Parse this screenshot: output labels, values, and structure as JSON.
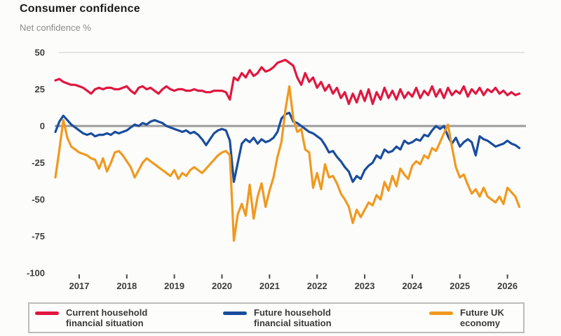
{
  "header": {
    "title": "Consumer confidence",
    "subtitle": "Net confidence %"
  },
  "chart_data": {
    "type": "line",
    "title": "Consumer confidence",
    "ylabel": "Net confidence %",
    "xlim": [
      2016.485,
      2026.33
    ],
    "ylim": [
      -100,
      50
    ],
    "y_ticks": [
      50,
      25,
      0,
      -25,
      -50,
      -75,
      -100
    ],
    "x_ticks": [
      2017,
      2018,
      2019,
      2020,
      2021,
      2022,
      2023,
      2024,
      2025,
      2026
    ],
    "x_start": 2016.5,
    "x_step": 0.083333,
    "grid": "light line at +50, heavy grey zero line, no other gridlines",
    "legend_position": "bottom",
    "zero_line_color": "#9b9b9b",
    "top_grid_color": "#e4e4e1",
    "tick_color": "#4a4a4a",
    "series": [
      {
        "id": "current-household",
        "name": "Current household financial situation",
        "color": "#e0173f",
        "values": [
          31,
          32,
          30,
          29,
          28,
          28,
          27,
          26,
          24,
          22,
          25,
          26,
          25,
          26,
          26,
          25,
          25,
          26,
          27,
          24,
          22,
          26,
          27,
          25,
          26,
          24,
          22,
          25,
          27,
          25,
          24,
          25,
          25,
          24,
          24,
          25,
          24,
          24,
          23,
          23,
          24,
          24,
          24,
          23,
          18,
          33,
          31,
          36,
          33,
          38,
          34,
          36,
          40,
          37,
          38,
          40,
          43,
          44,
          45,
          43,
          41,
          33,
          28,
          36,
          30,
          33,
          26,
          30,
          24,
          28,
          22,
          26,
          19,
          23,
          15,
          22,
          16,
          24,
          17,
          25,
          15,
          23,
          18,
          26,
          19,
          24,
          18,
          25,
          19,
          23,
          20,
          26,
          19,
          24,
          21,
          27,
          20,
          25,
          19,
          26,
          21,
          24,
          22,
          27,
          20,
          25,
          22,
          26,
          21,
          25,
          23,
          26,
          22,
          24,
          21,
          23,
          21,
          22
        ]
      },
      {
        "id": "future-household",
        "name": "Future household financial situation",
        "color": "#1a4d9d",
        "values": [
          -4,
          3,
          7,
          4,
          1,
          -1,
          -3,
          -5,
          -6,
          -5,
          -7,
          -6,
          -6,
          -5,
          -6,
          -4,
          -5,
          -4,
          -3,
          -1,
          1,
          0,
          2,
          1,
          3,
          4,
          3,
          2,
          0,
          -1,
          -2,
          -3,
          -4,
          -3,
          -5,
          -4,
          -6,
          -9,
          -13,
          -9,
          -5,
          -3,
          -2,
          -3,
          -10,
          -38,
          -25,
          -12,
          -9,
          -11,
          -8,
          -12,
          -9,
          -11,
          -10,
          -8,
          -4,
          5,
          8,
          9,
          3,
          2,
          0,
          -2,
          -4,
          -5,
          -7,
          -9,
          -13,
          -18,
          -17,
          -21,
          -24,
          -28,
          -31,
          -38,
          -34,
          -36,
          -30,
          -27,
          -25,
          -20,
          -22,
          -16,
          -18,
          -17,
          -14,
          -16,
          -10,
          -12,
          -11,
          -9,
          -10,
          -6,
          -7,
          -3,
          0,
          -2,
          0,
          -7,
          -12,
          -8,
          -14,
          -11,
          -9,
          -11,
          -20,
          -7,
          -9,
          -10,
          -12,
          -14,
          -13,
          -12,
          -10,
          -12,
          -13,
          -15
        ]
      },
      {
        "id": "future-uk-economy",
        "name": "Future UK economy",
        "color": "#f0991f",
        "values": [
          -35,
          -16,
          4,
          -8,
          -14,
          -16,
          -18,
          -19,
          -20,
          -22,
          -23,
          -29,
          -22,
          -31,
          -25,
          -18,
          -17,
          -20,
          -24,
          -28,
          -35,
          -30,
          -25,
          -22,
          -24,
          -26,
          -28,
          -30,
          -32,
          -34,
          -30,
          -36,
          -32,
          -34,
          -30,
          -28,
          -30,
          -32,
          -29,
          -26,
          -23,
          -20,
          -18,
          -17,
          -20,
          -78,
          -60,
          -53,
          -61,
          -40,
          -63,
          -48,
          -39,
          -55,
          -44,
          -35,
          -21,
          -11,
          11,
          27,
          5,
          -4,
          -2,
          -16,
          -18,
          -42,
          -32,
          -43,
          -26,
          -35,
          -34,
          -39,
          -46,
          -50,
          -55,
          -66,
          -57,
          -62,
          -57,
          -52,
          -54,
          -47,
          -50,
          -38,
          -44,
          -34,
          -41,
          -29,
          -33,
          -36,
          -27,
          -24,
          -26,
          -20,
          -22,
          -15,
          -17,
          -11,
          -5,
          1,
          -14,
          -28,
          -35,
          -33,
          -40,
          -46,
          -43,
          -48,
          -42,
          -48,
          -50,
          -52,
          -48,
          -53,
          -42,
          -45,
          -48,
          -55
        ]
      }
    ]
  },
  "legend": {
    "items": [
      {
        "line1": "Current household",
        "line2": "financial situation",
        "color": "#e0173f"
      },
      {
        "line1": "Future household",
        "line2": "financial situation",
        "color": "#1a4d9d"
      },
      {
        "line1": "Future UK",
        "line2": "economy",
        "color": "#f0991f"
      }
    ]
  }
}
